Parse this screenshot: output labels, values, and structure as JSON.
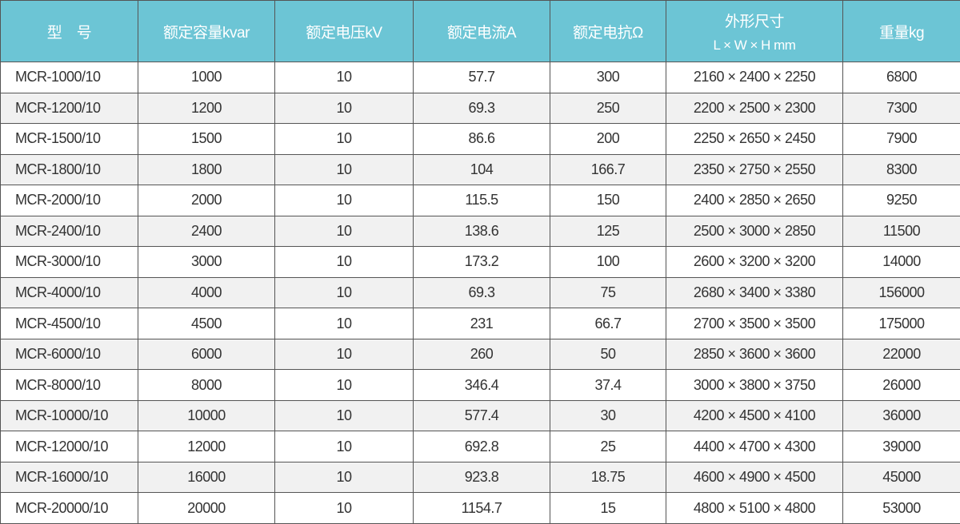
{
  "header": [
    "型　号",
    "额定容量kvar",
    "额定电压kV",
    "额定电流A",
    "额定电抗Ω",
    "外形尺寸",
    "重量kg"
  ],
  "header_sub": "L × W × H mm",
  "colors": {
    "header_bg": "#6cc5d5",
    "alt_row": "#f1f1f1"
  },
  "rows": [
    [
      "MCR-1000/10",
      "1000",
      "10",
      "57.7",
      "300",
      "2160 × 2400 × 2250",
      "6800"
    ],
    [
      "MCR-1200/10",
      "1200",
      "10",
      "69.3",
      "250",
      "2200 × 2500 × 2300",
      "7300"
    ],
    [
      "MCR-1500/10",
      "1500",
      "10",
      "86.6",
      "200",
      "2250 × 2650 × 2450",
      "7900"
    ],
    [
      "MCR-1800/10",
      "1800",
      "10",
      "104",
      "166.7",
      "2350 × 2750 × 2550",
      "8300"
    ],
    [
      "MCR-2000/10",
      "2000",
      "10",
      "115.5",
      "150",
      "2400 × 2850 × 2650",
      "9250"
    ],
    [
      "MCR-2400/10",
      "2400",
      "10",
      "138.6",
      "125",
      "2500 × 3000 × 2850",
      "11500"
    ],
    [
      "MCR-3000/10",
      "3000",
      "10",
      "173.2",
      "100",
      "2600 × 3200 × 3200",
      "14000"
    ],
    [
      "MCR-4000/10",
      "4000",
      "10",
      "69.3",
      "75",
      "2680 × 3400 × 3380",
      "156000"
    ],
    [
      "MCR-4500/10",
      "4500",
      "10",
      "231",
      "66.7",
      "2700 × 3500 × 3500",
      "175000"
    ],
    [
      "MCR-6000/10",
      "6000",
      "10",
      "260",
      "50",
      "2850 × 3600 × 3600",
      "22000"
    ],
    [
      "MCR-8000/10",
      "8000",
      "10",
      "346.4",
      "37.4",
      "3000 × 3800 × 3750",
      "26000"
    ],
    [
      "MCR-10000/10",
      "10000",
      "10",
      "577.4",
      "30",
      "4200 × 4500 × 4100",
      "36000"
    ],
    [
      "MCR-12000/10",
      "12000",
      "10",
      "692.8",
      "25",
      "4400 × 4700 × 4300",
      "39000"
    ],
    [
      "MCR-16000/10",
      "16000",
      "10",
      "923.8",
      "18.75",
      "4600 × 4900 × 4500",
      "45000"
    ],
    [
      "MCR-20000/10",
      "20000",
      "10",
      "1154.7",
      "15",
      "4800 × 5100 × 4800",
      "53000"
    ]
  ]
}
